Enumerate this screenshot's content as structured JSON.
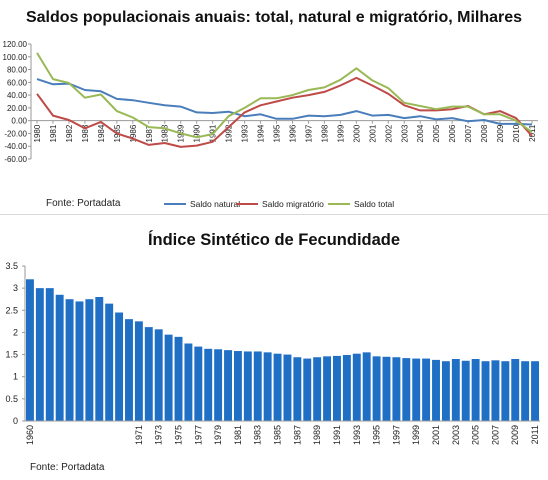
{
  "chart_data": [
    {
      "type": "line",
      "title": "Saldos populacionais anuais: total, natural e migratório, Milhares",
      "source": "Fonte: Portadata",
      "x": [
        "1980",
        "1981",
        "1982",
        "1983",
        "1984",
        "1985",
        "1986",
        "1987",
        "1988",
        "1989",
        "1990",
        "1991",
        "1992",
        "1993",
        "1994",
        "1995",
        "1996",
        "1997",
        "1998",
        "1999",
        "2000",
        "2001",
        "2002",
        "2003",
        "2004",
        "2005",
        "2006",
        "2007",
        "2008",
        "2009",
        "2010",
        "2011"
      ],
      "yticks": [
        "120.00",
        "100.00",
        "80.00",
        "60.00",
        "40.00",
        "20.00",
        "0.00",
        "-20.00",
        "-40.00",
        "-60.00"
      ],
      "ylim": [
        -60,
        120
      ],
      "grid": false,
      "legend_position": "bottom",
      "series": [
        {
          "name": "Saldo natural",
          "color": "#4a7ebb",
          "values": [
            65,
            57,
            58,
            48,
            46,
            34,
            32,
            28,
            24,
            22,
            13,
            12,
            14,
            7,
            10,
            3,
            3,
            8,
            7,
            9,
            15,
            8,
            9,
            4,
            7,
            2,
            4,
            -1,
            1,
            -5,
            -5,
            -6
          ]
        },
        {
          "name": "Saldo migratório",
          "color": "#be4b48",
          "values": [
            42,
            8,
            1,
            -12,
            -2,
            -20,
            -28,
            -38,
            -35,
            -41,
            -39,
            -33,
            -10,
            13,
            24,
            30,
            36,
            40,
            45,
            55,
            67,
            55,
            42,
            24,
            16,
            16,
            18,
            23,
            10,
            15,
            4,
            -24
          ]
        },
        {
          "name": "Saldo total",
          "color": "#98b954",
          "values": [
            106,
            65,
            59,
            36,
            41,
            15,
            5,
            -10,
            -12,
            -20,
            -26,
            -21,
            7,
            20,
            35,
            35,
            40,
            48,
            52,
            64,
            82,
            63,
            51,
            28,
            23,
            18,
            22,
            22,
            10,
            10,
            0,
            -18
          ]
        }
      ]
    },
    {
      "type": "bar",
      "title": "Índice Sintético de Fecundidade",
      "source": "Fonte: Portadata",
      "categories": [
        "1960",
        "1961",
        "1962",
        "1963",
        "1964",
        "1965",
        "1966",
        "1967",
        "1968",
        "1969",
        "1970",
        "1971",
        "1972",
        "1973",
        "1974",
        "1975",
        "1976",
        "1977",
        "1978",
        "1979",
        "1980",
        "1981",
        "1982",
        "1983",
        "1984",
        "1985",
        "1986",
        "1987",
        "1988",
        "1989",
        "1990",
        "1991",
        "1992",
        "1993",
        "1994",
        "1995",
        "1996",
        "1997",
        "1998",
        "1999",
        "2000",
        "2001",
        "2002",
        "2003",
        "2004",
        "2005",
        "2006",
        "2007",
        "2008",
        "2009",
        "2010",
        "2011"
      ],
      "category_labels": [
        "1960",
        "1971",
        "1973",
        "1975",
        "1977",
        "1979",
        "1981",
        "1983",
        "1985",
        "1987",
        "1989",
        "1991",
        "1993",
        "1995",
        "1997",
        "1999",
        "2001",
        "2003",
        "2005",
        "2007",
        "2009",
        "2011"
      ],
      "yticks": [
        "3.5",
        "3",
        "2.5",
        "2",
        "1.5",
        "1",
        "0.5",
        "0"
      ],
      "ylim": [
        0,
        3.5
      ],
      "color": "#1f6fc5",
      "values": [
        3.2,
        3.0,
        3.0,
        2.85,
        2.75,
        2.7,
        2.75,
        2.8,
        2.65,
        2.45,
        2.3,
        2.25,
        2.12,
        2.07,
        1.95,
        1.9,
        1.75,
        1.68,
        1.63,
        1.62,
        1.6,
        1.58,
        1.57,
        1.57,
        1.55,
        1.52,
        1.5,
        1.44,
        1.41,
        1.44,
        1.46,
        1.47,
        1.49,
        1.52,
        1.55,
        1.46,
        1.45,
        1.44,
        1.42,
        1.41,
        1.41,
        1.38,
        1.35,
        1.4,
        1.36,
        1.4,
        1.35,
        1.37,
        1.35,
        1.4,
        1.35,
        1.35
      ]
    }
  ]
}
